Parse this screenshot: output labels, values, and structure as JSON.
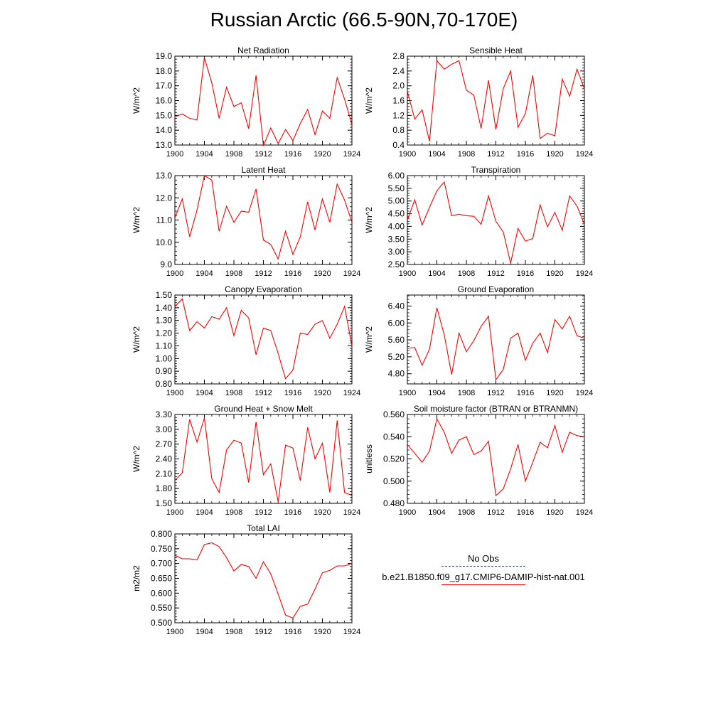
{
  "figure": {
    "title": "Russian Arctic (66.5-90N,70-170E)"
  },
  "legend": {
    "entries": [
      {
        "label": "No Obs",
        "color": "#3a4aa0",
        "style": "dashed"
      },
      {
        "label": "b.e21.B1850.f09_g17.CMIP6-DAMIP-hist-nat.001",
        "color": "#ff0000",
        "style": "solid"
      }
    ]
  },
  "chart_data": [
    {
      "type": "line",
      "title": "Net Radiation",
      "xlabel": "",
      "ylabel": "W/m^2",
      "xlim": [
        1900,
        1924
      ],
      "ylim": [
        13.0,
        19.0
      ],
      "xticks": [
        1900,
        1904,
        1908,
        1912,
        1916,
        1920,
        1924
      ],
      "yticks": [
        13.0,
        14.0,
        15.0,
        16.0,
        17.0,
        18.0,
        19.0
      ],
      "ydecimals": 1,
      "grid": false,
      "series": [
        {
          "color": "#ff0000",
          "x": [
            1900,
            1901,
            1902,
            1903,
            1904,
            1905,
            1906,
            1907,
            1908,
            1909,
            1910,
            1911,
            1912,
            1913,
            1914,
            1915,
            1916,
            1917,
            1918,
            1919,
            1920,
            1921,
            1922,
            1923,
            1924
          ],
          "values": [
            14.9,
            15.1,
            14.8,
            14.7,
            18.9,
            17.2,
            14.8,
            16.9,
            15.6,
            15.85,
            14.1,
            17.7,
            12.95,
            14.15,
            13.1,
            14.05,
            13.3,
            14.45,
            15.4,
            13.7,
            15.3,
            14.8,
            17.55,
            16.1,
            14.4
          ]
        }
      ]
    },
    {
      "type": "line",
      "title": "Sensible Heat",
      "xlabel": "",
      "ylabel": "W/m^2",
      "xlim": [
        1900,
        1924
      ],
      "ylim": [
        0.4,
        2.8
      ],
      "xticks": [
        1900,
        1904,
        1908,
        1912,
        1916,
        1920,
        1924
      ],
      "yticks": [
        0.4,
        0.8,
        1.2,
        1.6,
        2.0,
        2.4,
        2.8
      ],
      "ydecimals": 1,
      "grid": false,
      "series": [
        {
          "color": "#ff0000",
          "x": [
            1900,
            1901,
            1902,
            1903,
            1904,
            1905,
            1906,
            1907,
            1908,
            1909,
            1910,
            1911,
            1912,
            1913,
            1914,
            1915,
            1916,
            1917,
            1918,
            1919,
            1920,
            1921,
            1922,
            1923,
            1924
          ],
          "values": [
            1.85,
            1.1,
            1.35,
            0.5,
            2.68,
            2.45,
            2.58,
            2.68,
            1.88,
            1.75,
            0.85,
            2.15,
            0.82,
            1.92,
            2.4,
            0.88,
            1.25,
            2.28,
            0.58,
            0.72,
            0.65,
            2.18,
            1.72,
            2.45,
            1.92
          ]
        }
      ]
    },
    {
      "type": "line",
      "title": "Latent Heat",
      "xlabel": "",
      "ylabel": "W/m^2",
      "xlim": [
        1900,
        1924
      ],
      "ylim": [
        9.0,
        13.0
      ],
      "xticks": [
        1900,
        1904,
        1908,
        1912,
        1916,
        1920,
        1924
      ],
      "yticks": [
        9.0,
        10.0,
        11.0,
        12.0,
        13.0
      ],
      "ydecimals": 1,
      "grid": false,
      "series": [
        {
          "color": "#ff0000",
          "x": [
            1900,
            1901,
            1902,
            1903,
            1904,
            1905,
            1906,
            1907,
            1908,
            1909,
            1910,
            1911,
            1912,
            1913,
            1914,
            1915,
            1916,
            1917,
            1918,
            1919,
            1920,
            1921,
            1922,
            1923,
            1924
          ],
          "values": [
            11.1,
            11.95,
            10.25,
            11.45,
            13.0,
            12.8,
            10.5,
            11.62,
            10.9,
            11.4,
            11.35,
            12.4,
            10.1,
            9.9,
            9.25,
            10.5,
            9.45,
            10.25,
            11.82,
            10.55,
            11.95,
            10.9,
            12.62,
            11.9,
            10.9
          ]
        }
      ]
    },
    {
      "type": "line",
      "title": "Transpiration",
      "xlabel": "",
      "ylabel": "W/m^2",
      "xlim": [
        1900,
        1924
      ],
      "ylim": [
        2.5,
        6.0
      ],
      "xticks": [
        1900,
        1904,
        1908,
        1912,
        1916,
        1920,
        1924
      ],
      "yticks": [
        2.5,
        3.0,
        3.5,
        4.0,
        4.5,
        5.0,
        5.5,
        6.0
      ],
      "ydecimals": 2,
      "grid": false,
      "series": [
        {
          "color": "#ff0000",
          "x": [
            1900,
            1901,
            1902,
            1903,
            1904,
            1905,
            1906,
            1907,
            1908,
            1909,
            1910,
            1911,
            1912,
            1913,
            1914,
            1915,
            1916,
            1917,
            1918,
            1919,
            1920,
            1921,
            1922,
            1923,
            1924
          ],
          "values": [
            4.25,
            5.05,
            4.05,
            4.75,
            5.4,
            5.75,
            4.42,
            4.48,
            4.42,
            4.4,
            4.08,
            5.2,
            4.2,
            3.78,
            2.55,
            3.92,
            3.42,
            3.52,
            4.85,
            3.98,
            4.55,
            3.85,
            5.2,
            4.8,
            4.08
          ]
        }
      ]
    },
    {
      "type": "line",
      "title": "Canopy Evaporation",
      "xlabel": "",
      "ylabel": "W/m^2",
      "xlim": [
        1900,
        1924
      ],
      "ylim": [
        0.8,
        1.5
      ],
      "xticks": [
        1900,
        1904,
        1908,
        1912,
        1916,
        1920,
        1924
      ],
      "yticks": [
        0.8,
        0.9,
        1.0,
        1.1,
        1.2,
        1.3,
        1.4,
        1.5
      ],
      "ydecimals": 2,
      "grid": false,
      "series": [
        {
          "color": "#ff0000",
          "x": [
            1900,
            1901,
            1902,
            1903,
            1904,
            1905,
            1906,
            1907,
            1908,
            1909,
            1910,
            1911,
            1912,
            1913,
            1914,
            1915,
            1916,
            1917,
            1918,
            1919,
            1920,
            1921,
            1922,
            1923,
            1924
          ],
          "values": [
            1.41,
            1.47,
            1.22,
            1.29,
            1.24,
            1.33,
            1.31,
            1.4,
            1.18,
            1.38,
            1.32,
            1.03,
            1.24,
            1.22,
            1.04,
            0.84,
            0.91,
            1.2,
            1.19,
            1.27,
            1.3,
            1.16,
            1.27,
            1.41,
            1.1
          ]
        }
      ]
    },
    {
      "type": "line",
      "title": "Ground Evaporation",
      "xlabel": "",
      "ylabel": "W/m^2",
      "xlim": [
        1900,
        1924
      ],
      "ylim": [
        4.56,
        6.66
      ],
      "xticks": [
        1900,
        1904,
        1908,
        1912,
        1916,
        1920,
        1924
      ],
      "yticks": [
        4.8,
        5.2,
        5.6,
        6.0,
        6.4
      ],
      "ydecimals": 2,
      "grid": false,
      "series": [
        {
          "color": "#ff0000",
          "x": [
            1900,
            1901,
            1902,
            1903,
            1904,
            1905,
            1906,
            1907,
            1908,
            1909,
            1910,
            1911,
            1912,
            1913,
            1914,
            1915,
            1916,
            1917,
            1918,
            1919,
            1920,
            1921,
            1922,
            1923,
            1924
          ],
          "values": [
            5.4,
            5.42,
            5.0,
            5.38,
            6.36,
            5.72,
            4.78,
            5.76,
            5.32,
            5.58,
            5.92,
            6.16,
            4.66,
            4.9,
            5.64,
            5.76,
            5.12,
            5.52,
            5.76,
            5.3,
            6.08,
            5.86,
            6.16,
            5.7,
            5.64
          ]
        }
      ]
    },
    {
      "type": "line",
      "title": "Ground Heat + Snow Melt",
      "xlabel": "",
      "ylabel": "W/m^2",
      "xlim": [
        1900,
        1924
      ],
      "ylim": [
        1.5,
        3.3
      ],
      "xticks": [
        1900,
        1904,
        1908,
        1912,
        1916,
        1920,
        1924
      ],
      "yticks": [
        1.5,
        1.8,
        2.1,
        2.4,
        2.7,
        3.0,
        3.3
      ],
      "ydecimals": 2,
      "grid": false,
      "series": [
        {
          "color": "#ff0000",
          "x": [
            1900,
            1901,
            1902,
            1903,
            1904,
            1905,
            1906,
            1907,
            1908,
            1909,
            1910,
            1911,
            1912,
            1913,
            1914,
            1915,
            1916,
            1917,
            1918,
            1919,
            1920,
            1921,
            1922,
            1923,
            1924
          ],
          "values": [
            1.96,
            2.12,
            3.2,
            2.74,
            3.23,
            2.0,
            1.72,
            2.58,
            2.78,
            2.72,
            1.92,
            3.15,
            2.08,
            2.3,
            1.53,
            2.68,
            2.62,
            1.96,
            3.04,
            2.4,
            2.72,
            1.72,
            3.18,
            1.72,
            1.66
          ]
        }
      ]
    },
    {
      "type": "line",
      "title": "Soil moisture factor (BTRAN or BTRANMN)",
      "xlabel": "",
      "ylabel": "unitless",
      "xlim": [
        1900,
        1924
      ],
      "ylim": [
        0.48,
        0.56
      ],
      "xticks": [
        1900,
        1904,
        1908,
        1912,
        1916,
        1920,
        1924
      ],
      "yticks": [
        0.48,
        0.5,
        0.52,
        0.54,
        0.56
      ],
      "ydecimals": 3,
      "grid": false,
      "series": [
        {
          "color": "#ff0000",
          "x": [
            1900,
            1901,
            1902,
            1903,
            1904,
            1905,
            1906,
            1907,
            1908,
            1909,
            1910,
            1911,
            1912,
            1913,
            1914,
            1915,
            1916,
            1917,
            1918,
            1919,
            1920,
            1921,
            1922,
            1923,
            1924
          ],
          "values": [
            0.533,
            0.525,
            0.517,
            0.527,
            0.556,
            0.544,
            0.525,
            0.537,
            0.54,
            0.524,
            0.527,
            0.536,
            0.487,
            0.493,
            0.511,
            0.533,
            0.5,
            0.517,
            0.535,
            0.53,
            0.55,
            0.526,
            0.544,
            0.541,
            0.54
          ]
        }
      ]
    },
    {
      "type": "line",
      "title": "Total LAI",
      "xlabel": "",
      "ylabel": "m2/m2",
      "xlim": [
        1900,
        1924
      ],
      "ylim": [
        0.5,
        0.8
      ],
      "xticks": [
        1900,
        1904,
        1908,
        1912,
        1916,
        1920,
        1924
      ],
      "yticks": [
        0.5,
        0.55,
        0.6,
        0.65,
        0.7,
        0.75,
        0.8
      ],
      "ydecimals": 3,
      "grid": false,
      "series": [
        {
          "color": "#ff0000",
          "x": [
            1900,
            1901,
            1902,
            1903,
            1904,
            1905,
            1906,
            1907,
            1908,
            1909,
            1910,
            1911,
            1912,
            1913,
            1914,
            1915,
            1916,
            1917,
            1918,
            1919,
            1920,
            1921,
            1922,
            1923,
            1924
          ],
          "values": [
            0.728,
            0.716,
            0.716,
            0.712,
            0.764,
            0.77,
            0.757,
            0.72,
            0.675,
            0.697,
            0.69,
            0.65,
            0.706,
            0.665,
            0.597,
            0.526,
            0.516,
            0.556,
            0.563,
            0.614,
            0.669,
            0.677,
            0.692,
            0.692,
            0.7
          ]
        }
      ]
    }
  ]
}
